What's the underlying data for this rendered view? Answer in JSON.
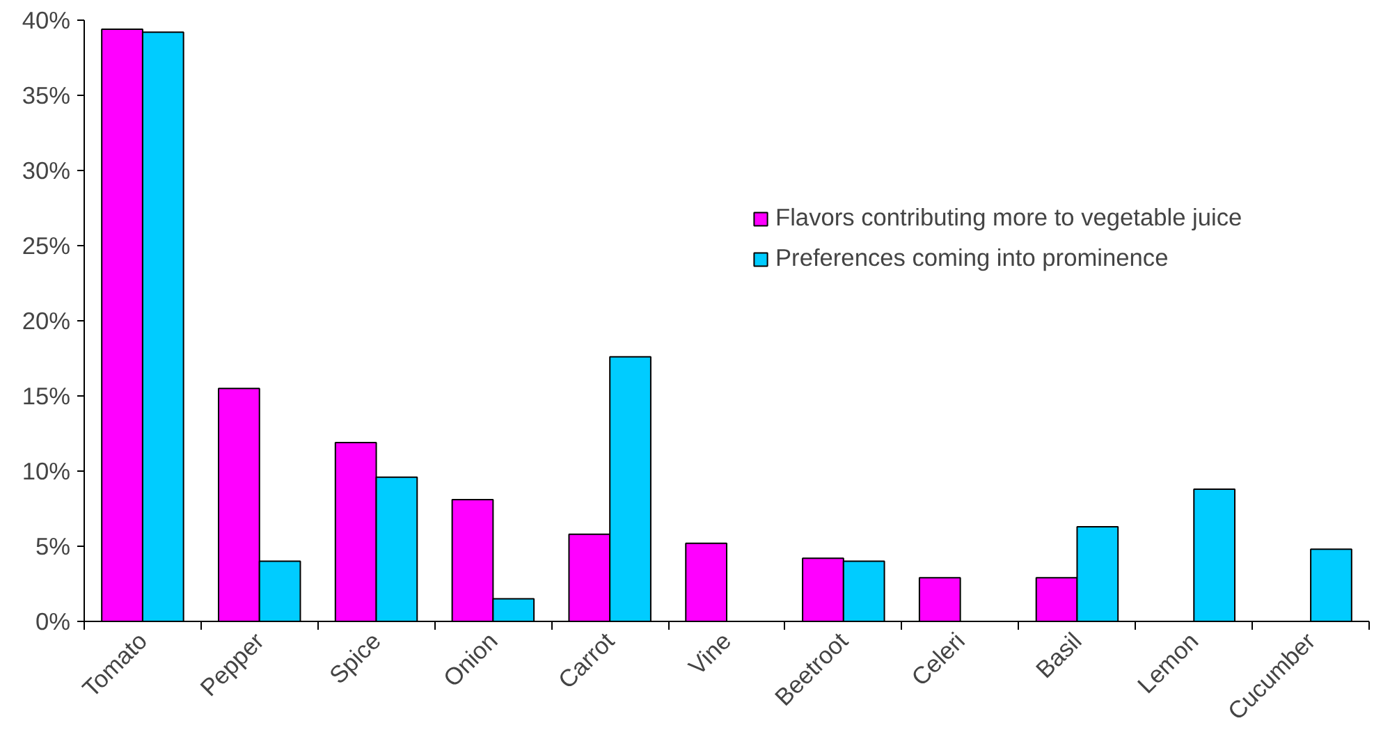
{
  "chart_data": {
    "type": "bar",
    "categories": [
      "Tomato",
      "Pepper",
      "Spice",
      "Onion",
      "Carrot",
      "Vine",
      "Beetroot",
      "Celeri",
      "Basil",
      "Lemon",
      "Cucumber"
    ],
    "series": [
      {
        "name": "Flavors contributing more to vegetable juice",
        "color": "#ff00ff",
        "values": [
          39.4,
          15.5,
          11.9,
          8.1,
          5.8,
          5.2,
          4.2,
          2.9,
          2.9,
          null,
          null
        ]
      },
      {
        "name": "Preferences coming into prominence",
        "color": "#00ccff",
        "values": [
          39.2,
          4.0,
          9.6,
          1.5,
          17.6,
          null,
          4.0,
          null,
          6.3,
          8.8,
          4.8
        ]
      }
    ],
    "ylim": [
      0,
      40
    ],
    "yticks": [
      {
        "value": 0,
        "label": "0%"
      },
      {
        "value": 5,
        "label": "5%"
      },
      {
        "value": 10,
        "label": "10%"
      },
      {
        "value": 15,
        "label": "15%"
      },
      {
        "value": 20,
        "label": "20%"
      },
      {
        "value": 25,
        "label": "25%"
      },
      {
        "value": 30,
        "label": "30%"
      },
      {
        "value": 35,
        "label": "35%"
      },
      {
        "value": 40,
        "label": "40%"
      }
    ],
    "grid": false,
    "legend": "top right"
  }
}
